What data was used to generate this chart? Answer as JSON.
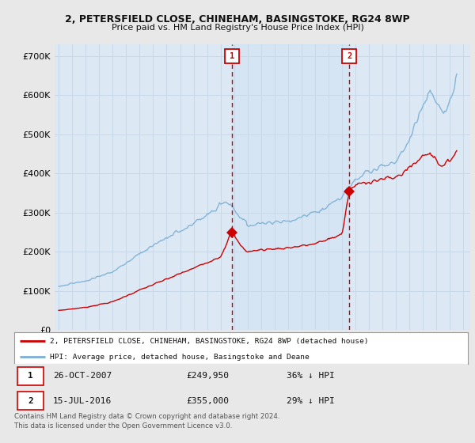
{
  "title1": "2, PETERSFIELD CLOSE, CHINEHAM, BASINGSTOKE, RG24 8WP",
  "title2": "Price paid vs. HM Land Registry's House Price Index (HPI)",
  "ytick_values": [
    0,
    100000,
    200000,
    300000,
    400000,
    500000,
    600000,
    700000
  ],
  "ylim": [
    0,
    730000
  ],
  "xlim_start": 1994.7,
  "xlim_end": 2025.5,
  "fig_bg_color": "#e8e8e8",
  "plot_bg_color": "#dce9f5",
  "grid_color": "#c8d8e8",
  "hpi_color": "#7bafd4",
  "price_color": "#cc0000",
  "shade_color": "#c8dff0",
  "marker1_date": 2007.82,
  "marker1_price": 249950,
  "marker2_date": 2016.54,
  "marker2_price": 355000,
  "legend_label1": "2, PETERSFIELD CLOSE, CHINEHAM, BASINGSTOKE, RG24 8WP (detached house)",
  "legend_label2": "HPI: Average price, detached house, Basingstoke and Deane",
  "table_row1": [
    "1",
    "26-OCT-2007",
    "£249,950",
    "36% ↓ HPI"
  ],
  "table_row2": [
    "2",
    "15-JUL-2016",
    "£355,000",
    "29% ↓ HPI"
  ],
  "footer": "Contains HM Land Registry data © Crown copyright and database right 2024.\nThis data is licensed under the Open Government Licence v3.0.",
  "dashed_line_color": "#cc0000",
  "hpi_waypoints_x": [
    1995,
    1997,
    1999,
    2001,
    2003,
    2005,
    2007,
    2007.5,
    2009,
    2010,
    2012,
    2014,
    2016,
    2017,
    2018,
    2019,
    2020,
    2021,
    2022,
    2022.5,
    2023,
    2023.5,
    2024,
    2024.5
  ],
  "hpi_waypoints_y": [
    112000,
    126000,
    148000,
    196000,
    235000,
    272000,
    318000,
    328000,
    265000,
    272000,
    278000,
    300000,
    340000,
    390000,
    405000,
    420000,
    430000,
    490000,
    570000,
    610000,
    580000,
    545000,
    580000,
    650000
  ],
  "prop_waypoints_x": [
    1995,
    1997,
    1999,
    2001,
    2003,
    2005,
    2007,
    2007.82,
    2008.5,
    2009,
    2010,
    2012,
    2014,
    2016,
    2016.54,
    2017,
    2018,
    2019,
    2020,
    2021,
    2022,
    2022.5,
    2023,
    2023.5,
    2024,
    2024.5
  ],
  "prop_waypoints_y": [
    50000,
    58000,
    72000,
    102000,
    130000,
    158000,
    188000,
    249950,
    215000,
    200000,
    205000,
    210000,
    220000,
    245000,
    355000,
    370000,
    380000,
    385000,
    390000,
    415000,
    445000,
    455000,
    435000,
    415000,
    435000,
    460000
  ]
}
